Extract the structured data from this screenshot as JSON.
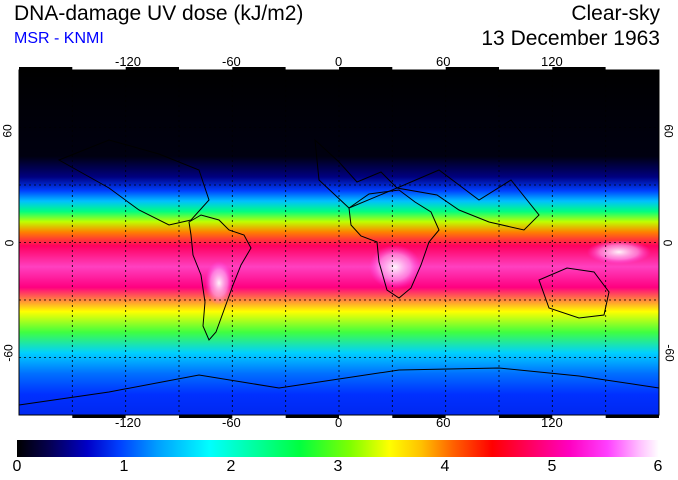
{
  "header": {
    "title": "DNA-damage UV dose (kJ/m2)",
    "subtitle": "MSR - KNMI",
    "sky_condition": "Clear-sky",
    "date": "13 December 1963"
  },
  "map": {
    "longitude_ticks": [
      "-120",
      "-60",
      "0",
      "60",
      "120"
    ],
    "latitude_ticks": [
      "60",
      "0",
      "-60"
    ],
    "lon_range": [
      -180,
      180
    ],
    "lat_range": [
      -90,
      90
    ]
  },
  "colorbar": {
    "labels": [
      "0",
      "1",
      "2",
      "3",
      "4",
      "5",
      "6"
    ],
    "min": 0,
    "max": 6,
    "unit": "kJ/m2"
  },
  "colors": {
    "subtitle": "#0000ff",
    "grid": "#000000"
  }
}
